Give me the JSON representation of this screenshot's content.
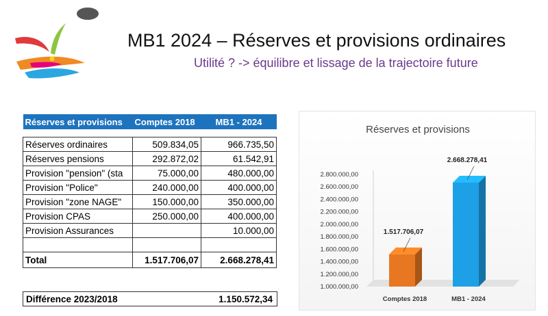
{
  "header": {
    "title": "MB1 2024 – Réserves et provisions ordinaires",
    "subtitle": "Utilité ?  -> équilibre et lissage de la trajectoire future"
  },
  "table": {
    "headers": [
      "Réserves et provisions",
      "Comptes 2018",
      "MB1 - 2024"
    ],
    "rows": [
      {
        "label": "Réserves ordinaires",
        "comptes2018": "509.834,05",
        "mb1_2024": "966.735,50"
      },
      {
        "label": "Réserves pensions",
        "comptes2018": "292.872,02",
        "mb1_2024": "61.542,91"
      },
      {
        "label": "Provision \"pension\" (sta",
        "comptes2018": "75.000,00",
        "mb1_2024": "480.000,00"
      },
      {
        "label": "Provision \"Police\"",
        "comptes2018": "240.000,00",
        "mb1_2024": "400.000,00"
      },
      {
        "label": "Provision \"zone NAGE\"",
        "comptes2018": "150.000,00",
        "mb1_2024": "350.000,00"
      },
      {
        "label": "Provision CPAS",
        "comptes2018": "250.000,00",
        "mb1_2024": "400.000,00"
      },
      {
        "label": "Provision Assurances",
        "comptes2018": "",
        "mb1_2024": "10.000,00"
      },
      {
        "label": "",
        "comptes2018": "",
        "mb1_2024": ""
      }
    ],
    "total": {
      "label": "Total",
      "comptes2018": "1.517.706,07",
      "mb1_2024": "2.668.278,41"
    },
    "difference": {
      "label": "Différence 2023/2018",
      "value": "1.150.572,34"
    }
  },
  "colors": {
    "header_blue": "#1e73be",
    "bar_orange": "#e87722",
    "bar_blue": "#1ea0e6",
    "subtitle_purple": "#6a3a8c"
  },
  "chart_data": {
    "type": "bar",
    "title": "Réserves et provisions",
    "categories": [
      "Comptes 2018",
      "MB1 - 2024"
    ],
    "values": [
      1517706.07,
      2668278.41
    ],
    "data_labels": [
      "1.517.706,07",
      "2.668.278,41"
    ],
    "bar_colors": [
      "#e87722",
      "#1ea0e6"
    ],
    "ylim": [
      1000000,
      2800000
    ],
    "yticks": [
      1000000,
      1200000,
      1400000,
      1600000,
      1800000,
      2000000,
      2200000,
      2400000,
      2600000,
      2800000
    ],
    "ytick_labels": [
      "1.000.000,00",
      "1.200.000,00",
      "1.400.000,00",
      "1.600.000,00",
      "1.800.000,00",
      "2.000.000,00",
      "2.200.000,00",
      "2.400.000,00",
      "2.600.000,00",
      "2.800.000,00"
    ],
    "style": "3d-column",
    "grid": false,
    "legend": "none"
  }
}
